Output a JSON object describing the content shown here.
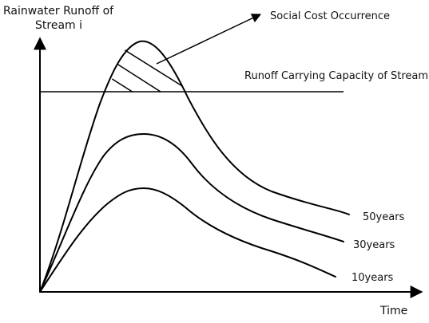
{
  "diagram": {
    "y_axis_label_line1": "Rainwater Runoff of",
    "y_axis_label_line2": "Stream i",
    "x_axis_label": "Time",
    "capacity_label": "Runoff Carrying Capacity of Stream",
    "social_cost_label": "Social Cost Occurrence",
    "curves": [
      {
        "label": "50years"
      },
      {
        "label": "30years"
      },
      {
        "label": "10years"
      }
    ]
  }
}
